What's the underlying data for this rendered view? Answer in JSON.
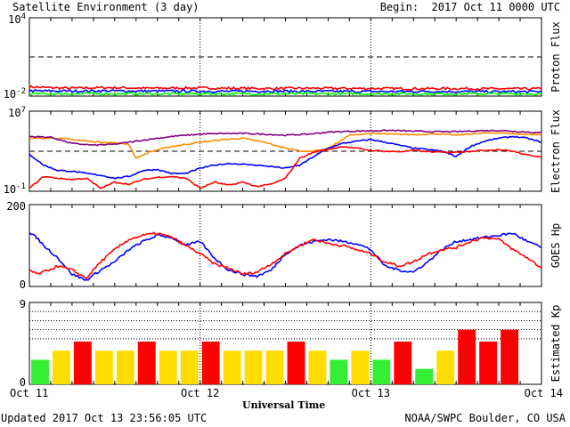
{
  "header": {
    "title": "Satellite Environment (3 day)",
    "begin_label": "Begin:  2017 Oct 11 0000 UTC"
  },
  "footer": {
    "updated": "Updated 2017 Oct 13 23:56:05 UTC",
    "credit": "NOAA/SWPC Boulder, CO USA"
  },
  "x_axis": {
    "label": "Universal Time",
    "ticks": [
      "Oct 11",
      "Oct 12",
      "Oct 13",
      "Oct 14"
    ]
  },
  "chart_data": [
    {
      "type": "line",
      "panel": "proton",
      "ylabel": "Proton Flux",
      "scale": "log",
      "ylim": [
        0.01,
        10000
      ],
      "ytick_labels": [
        "10^4",
        "10^-2"
      ],
      "threshold": 10,
      "series": [
        {
          "color": "#ff0000",
          "values": [
            0.05,
            0.04,
            0.045,
            0.04,
            0.042,
            0.04,
            0.038,
            0.04,
            0.039,
            0.038,
            0.037,
            0.038,
            0.036,
            0.037
          ]
        },
        {
          "color": "#0000ff",
          "values": [
            0.025,
            0.024,
            0.025,
            0.024,
            0.024,
            0.023,
            0.024,
            0.023,
            0.023,
            0.022,
            0.023,
            0.022,
            0.022,
            0.022
          ]
        },
        {
          "color": "#00ff00",
          "values": [
            0.015,
            0.015,
            0.015,
            0.015,
            0.015,
            0.015,
            0.015,
            0.015,
            0.015,
            0.015,
            0.015,
            0.015,
            0.015,
            0.015
          ]
        }
      ]
    },
    {
      "type": "line",
      "panel": "electron",
      "ylabel": "Electron Flux",
      "scale": "log",
      "ylim": [
        0.1,
        10000000
      ],
      "ytick_labels": [
        "10^7",
        "10^-1"
      ],
      "threshold": 1000,
      "series": [
        {
          "color": "#ff8c00",
          "x": [
            0,
            3,
            6,
            9,
            12,
            14,
            15,
            17,
            20,
            24,
            27,
            30,
            33,
            36,
            39,
            42,
            45,
            48,
            51,
            54,
            57,
            60,
            63,
            66,
            69,
            72
          ],
          "values": [
            18000,
            22000,
            15000,
            9000,
            7000,
            5000,
            200,
            900,
            3000,
            8000,
            14000,
            20000,
            8000,
            2000,
            900,
            1800,
            40000,
            60000,
            50000,
            45000,
            55000,
            40000,
            60000,
            70000,
            50000,
            45000
          ]
        },
        {
          "color": "#800080",
          "x": [
            0,
            3,
            6,
            9,
            12,
            15,
            18,
            21,
            24,
            27,
            30,
            33,
            36,
            39,
            42,
            45,
            48,
            51,
            54,
            57,
            60,
            63,
            66,
            69,
            72
          ],
          "values": [
            30000,
            25000,
            6000,
            4000,
            5000,
            10000,
            20000,
            35000,
            50000,
            60000,
            60000,
            50000,
            40000,
            50000,
            80000,
            100000,
            110000,
            120000,
            100000,
            90000,
            90000,
            110000,
            120000,
            90000,
            70000
          ]
        },
        {
          "color": "#0000ff",
          "x": [
            0,
            2,
            4,
            6,
            8,
            10,
            12,
            14,
            16,
            18,
            20,
            22,
            24,
            26,
            28,
            30,
            32,
            34,
            36,
            38,
            40,
            42,
            44,
            46,
            48,
            50,
            52,
            54,
            56,
            58,
            60,
            62,
            64,
            66,
            68,
            70,
            72
          ],
          "values": [
            500,
            40,
            12,
            10,
            6,
            4,
            2,
            3,
            12,
            15,
            6,
            6,
            20,
            40,
            60,
            50,
            40,
            30,
            20,
            40,
            300,
            2000,
            6000,
            10000,
            15000,
            8000,
            4000,
            2000,
            1500,
            1000,
            300,
            3000,
            10000,
            20000,
            30000,
            20000,
            8000
          ]
        },
        {
          "color": "#ff0000",
          "x": [
            0,
            2,
            4,
            6,
            8,
            10,
            12,
            14,
            16,
            18,
            20,
            22,
            24,
            26,
            28,
            30,
            32,
            34,
            36,
            38,
            40,
            42,
            44,
            46,
            48,
            50,
            52,
            54,
            56,
            58,
            60,
            62,
            64,
            66,
            68,
            70,
            72
          ],
          "values": [
            0.2,
            3,
            2,
            1.5,
            2,
            0.2,
            0.8,
            0.5,
            1.5,
            2.5,
            3,
            2,
            0.2,
            0.8,
            0.4,
            0.8,
            0.3,
            0.5,
            2,
            200,
            800,
            1500,
            3000,
            2000,
            1200,
            1000,
            900,
            1200,
            900,
            800,
            800,
            1000,
            1200,
            1500,
            1000,
            400,
            300
          ]
        }
      ]
    },
    {
      "type": "line",
      "panel": "goes_hp",
      "ylabel": "GOES Hp",
      "scale": "linear",
      "ylim": [
        0,
        200
      ],
      "ytick_labels": [
        "200",
        "0"
      ],
      "series": [
        {
          "color": "#0000ff",
          "x": [
            0,
            1,
            2,
            4,
            6,
            8,
            10,
            12,
            14,
            16,
            18,
            20,
            22,
            24,
            26,
            28,
            30,
            32,
            34,
            36,
            38,
            40,
            42,
            44,
            46,
            48,
            50,
            52,
            54,
            56,
            58,
            60,
            62,
            64,
            66,
            68,
            70,
            72
          ],
          "values": [
            130,
            120,
            100,
            70,
            30,
            15,
            40,
            60,
            90,
            110,
            125,
            120,
            100,
            110,
            70,
            40,
            30,
            25,
            40,
            80,
            100,
            110,
            115,
            110,
            105,
            90,
            50,
            40,
            35,
            60,
            90,
            110,
            115,
            120,
            125,
            130,
            110,
            95
          ]
        },
        {
          "color": "#ff0000",
          "x": [
            0,
            1,
            2,
            4,
            6,
            8,
            10,
            12,
            14,
            16,
            18,
            20,
            22,
            24,
            26,
            28,
            30,
            32,
            34,
            36,
            38,
            40,
            42,
            44,
            46,
            48,
            50,
            52,
            54,
            56,
            58,
            60,
            62,
            64,
            66,
            68,
            70,
            72
          ],
          "values": [
            40,
            30,
            35,
            50,
            40,
            20,
            60,
            90,
            115,
            125,
            130,
            120,
            100,
            80,
            55,
            45,
            30,
            35,
            55,
            80,
            100,
            115,
            105,
            100,
            90,
            80,
            60,
            50,
            60,
            80,
            90,
            95,
            110,
            120,
            115,
            90,
            70,
            45
          ]
        }
      ]
    },
    {
      "type": "bar",
      "panel": "kp",
      "ylabel": "Estimated Kp",
      "ylim": [
        0,
        9
      ],
      "ytick_labels": [
        "9",
        "0"
      ],
      "values": [
        2.7,
        3.7,
        4.7,
        3.7,
        3.7,
        4.7,
        3.7,
        3.7,
        4.7,
        3.7,
        3.7,
        3.7,
        4.7,
        3.7,
        2.7,
        3.7,
        2.7,
        4.7,
        1.7,
        3.7,
        6.0,
        4.7,
        6.0
      ],
      "colors": [
        "#33ee33",
        "#ffdd00",
        "#ff0000",
        "#ffdd00",
        "#ffdd00",
        "#ff0000",
        "#ffdd00",
        "#ffdd00",
        "#ff0000",
        "#ffdd00",
        "#ffdd00",
        "#ffdd00",
        "#ff0000",
        "#ffdd00",
        "#33ee33",
        "#ffdd00",
        "#33ee33",
        "#ff0000",
        "#33ee33",
        "#ffdd00",
        "#ff0000",
        "#ff0000",
        "#ff0000"
      ]
    }
  ]
}
